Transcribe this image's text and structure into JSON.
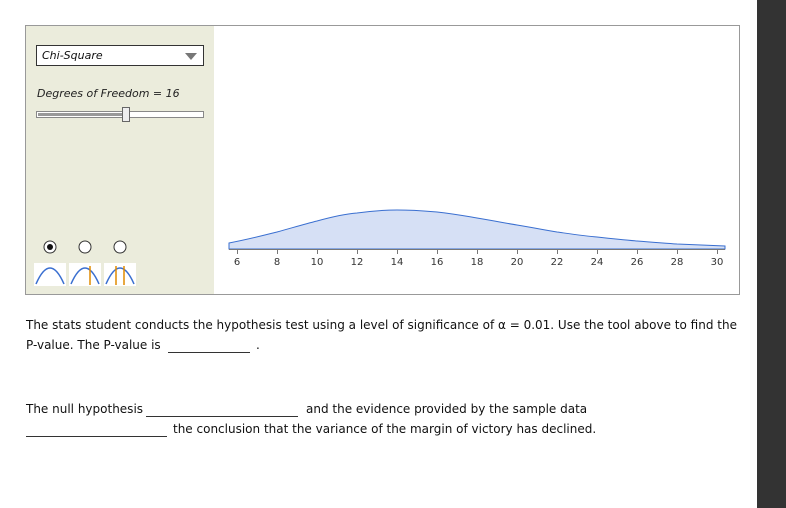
{
  "tool": {
    "distribution": "Chi-Square",
    "df_label": "Degrees of Freedom = 16",
    "axis_ticks": [
      6,
      8,
      10,
      12,
      14,
      16,
      18,
      20,
      22,
      24,
      26,
      28,
      30
    ]
  },
  "question": {
    "line1": "The stats student conducts the hypothesis test using a level of significance of α = 0.01. Use the tool above to find the",
    "pvalue_prefix": "P-value. The P-value is",
    "pvalue_suffix": ".",
    "null_prefix": "The null hypothesis",
    "null_middle": "and the evidence provided by the sample data",
    "conclusion": "the conclusion that the variance of the margin of victory has declined."
  }
}
